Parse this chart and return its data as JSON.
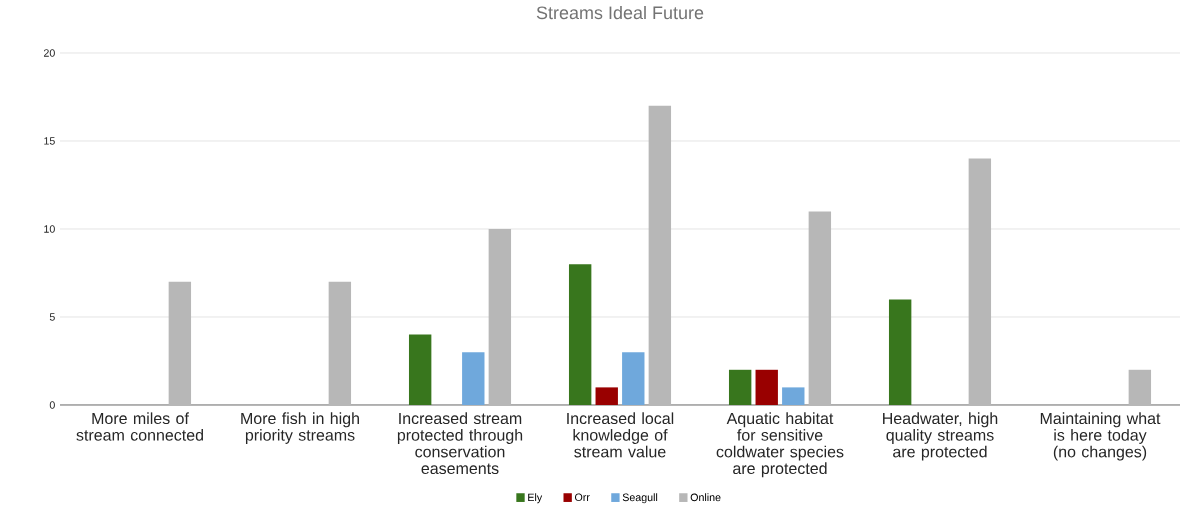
{
  "chart_data": {
    "type": "bar",
    "title": "Streams Ideal Future",
    "categories": [
      "More miles of stream connected",
      "More fish in high priority streams",
      "Increased stream protected through conservation easements",
      "Increased local knowledge of stream value",
      "Aquatic habitat for sensitive coldwater species are protected",
      "Headwater, high quality streams are protected",
      "Maintaining what is here today (no changes)"
    ],
    "series": [
      {
        "name": "Ely",
        "color": "#38761d",
        "values": [
          null,
          null,
          4,
          8,
          2,
          6,
          null
        ]
      },
      {
        "name": "Orr",
        "color": "#990000",
        "values": [
          null,
          null,
          null,
          1,
          2,
          null,
          null
        ]
      },
      {
        "name": "Seagull",
        "color": "#6fa8dc",
        "values": [
          null,
          null,
          3,
          3,
          1,
          null,
          null
        ]
      },
      {
        "name": "Online",
        "color": "#b7b7b7",
        "values": [
          7,
          7,
          10,
          17,
          11,
          14,
          2
        ]
      }
    ],
    "ylim": [
      0,
      20
    ],
    "yticks": [
      0,
      5,
      10,
      15,
      20
    ],
    "grid": "y",
    "legend": "bottom"
  }
}
